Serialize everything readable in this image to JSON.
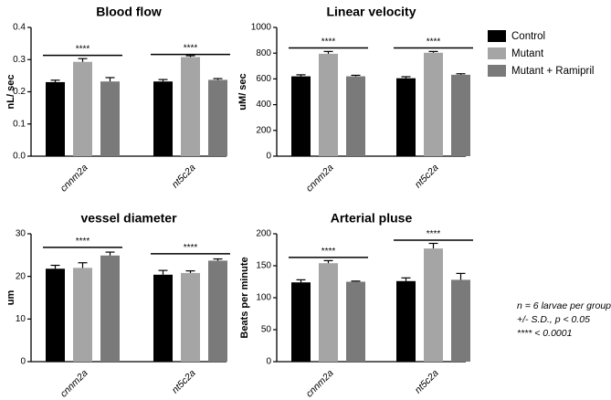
{
  "legend": [
    {
      "name": "Control",
      "color": "#000000"
    },
    {
      "name": "Mutant",
      "color": "#a5a5a5"
    },
    {
      "name": "Mutant + Ramipril",
      "color": "#7a7a7a"
    }
  ],
  "notes": [
    "n = 6 larvae per group",
    "+/- S.D., p < 0.05",
    "**** < 0.0001"
  ],
  "chart_data": [
    {
      "type": "bar",
      "title": "Blood flow",
      "ylabel": "nL/ sec",
      "xlabel": "",
      "categories": [
        "cnnm2a",
        "nt5c2a"
      ],
      "ylim": [
        0,
        0.4
      ],
      "yticks": [
        "0.0",
        "0.1",
        "0.2",
        "0.3",
        "0.4"
      ],
      "series": [
        {
          "name": "Control",
          "values": [
            0.23,
            0.232
          ],
          "errors": [
            0.006,
            0.006
          ]
        },
        {
          "name": "Mutant",
          "values": [
            0.293,
            0.308
          ],
          "errors": [
            0.01,
            0.004
          ]
        },
        {
          "name": "Mutant + Ramipril",
          "values": [
            0.232,
            0.237
          ],
          "errors": [
            0.012,
            0.004
          ]
        }
      ],
      "significance": [
        {
          "label": "****",
          "category": 0,
          "from": 0,
          "to": 2,
          "y": 0.313
        },
        {
          "label": "****",
          "category": 1,
          "from": 0,
          "to": 2,
          "y": 0.316
        }
      ],
      "grid": false
    },
    {
      "type": "bar",
      "title": "Linear velocity",
      "ylabel": "uM/ sec",
      "xlabel": "",
      "categories": [
        "cnnm2a",
        "nt5c2a"
      ],
      "ylim": [
        0,
        1000
      ],
      "yticks": [
        "0",
        "200",
        "400",
        "600",
        "800",
        "1000"
      ],
      "series": [
        {
          "name": "Control",
          "values": [
            620,
            605
          ],
          "errors": [
            12,
            12
          ]
        },
        {
          "name": "Mutant",
          "values": [
            795,
            803
          ],
          "errors": [
            18,
            10
          ]
        },
        {
          "name": "Mutant + Ramipril",
          "values": [
            620,
            632
          ],
          "errors": [
            8,
            8
          ]
        }
      ],
      "significance": [
        {
          "label": "****",
          "category": 0,
          "from": 0,
          "to": 2,
          "y": 840
        },
        {
          "label": "****",
          "category": 1,
          "from": 0,
          "to": 2,
          "y": 840
        }
      ],
      "grid": false
    },
    {
      "type": "bar",
      "title": "vessel diameter",
      "ylabel": "um",
      "xlabel": "",
      "categories": [
        "cnnm2a",
        "nt5c2a"
      ],
      "ylim": [
        0,
        30
      ],
      "yticks": [
        "0",
        "10",
        "20",
        "30"
      ],
      "series": [
        {
          "name": "Control",
          "values": [
            21.8,
            20.4
          ],
          "errors": [
            0.8,
            1.0
          ]
        },
        {
          "name": "Mutant",
          "values": [
            22.0,
            20.8
          ],
          "errors": [
            1.2,
            0.5
          ]
        },
        {
          "name": "Mutant + Ramipril",
          "values": [
            24.9,
            23.7
          ],
          "errors": [
            0.8,
            0.4
          ]
        }
      ],
      "significance": [
        {
          "label": "****",
          "category": 0,
          "from": 0,
          "to": 2,
          "y": 26.8
        },
        {
          "label": "****",
          "category": 1,
          "from": 0,
          "to": 2,
          "y": 25.3
        }
      ],
      "grid": false
    },
    {
      "type": "bar",
      "title": "Arterial pluse",
      "ylabel": "Beats per minute",
      "xlabel": "",
      "categories": [
        "cnnm2a",
        "nt5c2a"
      ],
      "ylim": [
        0,
        200
      ],
      "yticks": [
        "0",
        "50",
        "100",
        "150",
        "200"
      ],
      "series": [
        {
          "name": "Control",
          "values": [
            124,
            126
          ],
          "errors": [
            4,
            5
          ]
        },
        {
          "name": "Mutant",
          "values": [
            154,
            177
          ],
          "errors": [
            4,
            8
          ]
        },
        {
          "name": "Mutant + Ramipril",
          "values": [
            125,
            128
          ],
          "errors": [
            1,
            10
          ]
        }
      ],
      "significance": [
        {
          "label": "****",
          "category": 0,
          "from": 0,
          "to": 2,
          "y": 163
        },
        {
          "label": "****",
          "category": 1,
          "from": 0,
          "to": 2,
          "y": 190
        }
      ],
      "grid": false
    }
  ]
}
